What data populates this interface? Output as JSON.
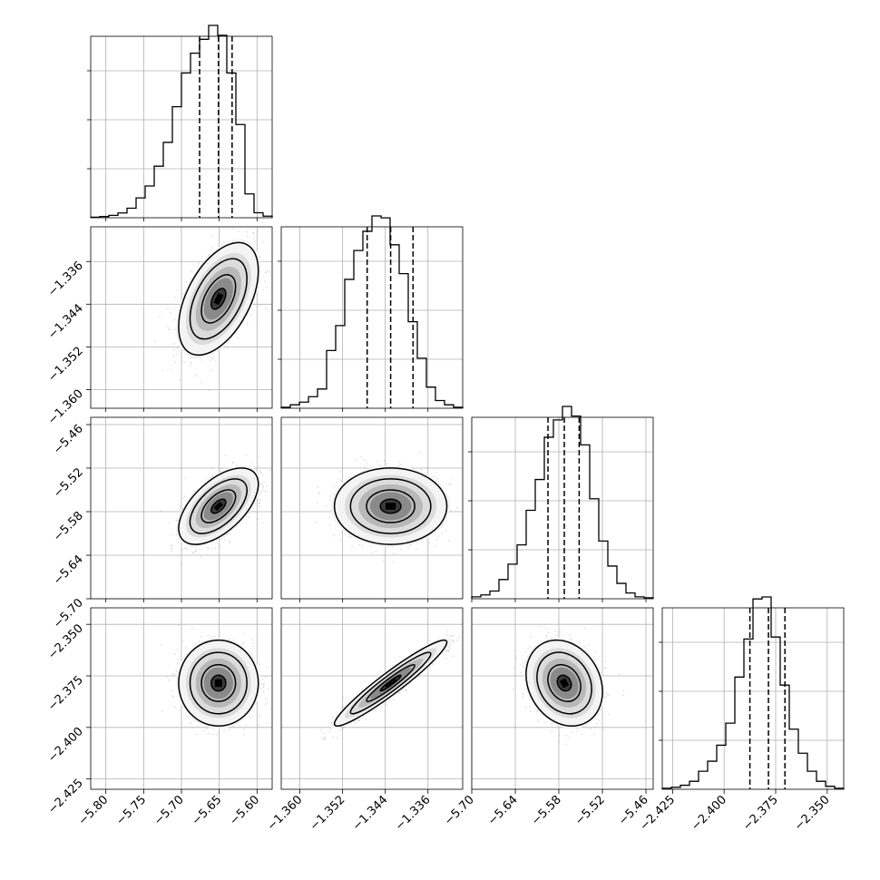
{
  "chart_data": {
    "type": "corner",
    "grid": true,
    "parameters": [
      {
        "range": [
          -5.82,
          -5.58
        ],
        "ticks": [
          -5.8,
          -5.75,
          -5.7,
          -5.65,
          -5.6
        ],
        "tick_labels": [
          "−5.80",
          "−5.75",
          "−5.70",
          "−5.65",
          "−5.60"
        ],
        "quantiles": [
          -5.676,
          -5.651,
          -5.633
        ],
        "hist": [
          0.003,
          0.006,
          0.012,
          0.024,
          0.048,
          0.1,
          0.16,
          0.26,
          0.38,
          0.56,
          0.73,
          0.83,
          0.9,
          0.97,
          0.92,
          0.73,
          0.47,
          0.12,
          0.025,
          0.008
        ]
      },
      {
        "range": [
          -1.3635,
          -1.3295
        ],
        "ticks": [
          -1.36,
          -1.352,
          -1.344,
          -1.336
        ],
        "tick_labels": [
          "−1.360",
          "−1.352",
          "−1.344",
          "−1.336"
        ],
        "quantiles": [
          -1.3474,
          -1.343,
          -1.3388
        ],
        "hist": [
          0.005,
          0.018,
          0.032,
          0.06,
          0.1,
          0.3,
          0.43,
          0.67,
          0.82,
          0.92,
          1.0,
          0.99,
          0.85,
          0.7,
          0.45,
          0.26,
          0.11,
          0.04,
          0.018,
          0.005
        ]
      },
      {
        "range": [
          -5.7,
          -5.45
        ],
        "ticks": [
          -5.7,
          -5.64,
          -5.58,
          -5.52,
          -5.46
        ],
        "tick_labels": [
          "−5.70",
          "−5.64",
          "−5.58",
          "−5.52",
          "−5.46"
        ],
        "quantiles": [
          -5.595,
          -5.5725,
          -5.552
        ],
        "hist": [
          0.01,
          0.02,
          0.04,
          0.1,
          0.18,
          0.28,
          0.46,
          0.62,
          0.84,
          0.93,
          1.0,
          0.95,
          0.8,
          0.52,
          0.3,
          0.17,
          0.08,
          0.03,
          0.01,
          0.005
        ]
      },
      {
        "range": [
          -2.43,
          -2.342
        ],
        "ticks": [
          -2.425,
          -2.4,
          -2.375,
          -2.35
        ],
        "tick_labels": [
          "−2.425",
          "−2.400",
          "−2.375",
          "−2.350"
        ],
        "quantiles": [
          -2.3875,
          -2.3785,
          -2.3705
        ],
        "hist": [
          0.005,
          0.01,
          0.02,
          0.04,
          0.09,
          0.14,
          0.22,
          0.33,
          0.56,
          0.75,
          0.95,
          0.96,
          0.76,
          0.52,
          0.3,
          0.18,
          0.09,
          0.04,
          0.015,
          0.005
        ]
      }
    ],
    "pairs": [
      {
        "row": 1,
        "col": 0,
        "corr": 0.5
      },
      {
        "row": 2,
        "col": 0,
        "corr": 0.58
      },
      {
        "row": 2,
        "col": 1,
        "corr": 0.0
      },
      {
        "row": 3,
        "col": 0,
        "corr": 0.0
      },
      {
        "row": 3,
        "col": 1,
        "corr": 0.95
      },
      {
        "row": 3,
        "col": 2,
        "corr": -0.2
      }
    ]
  }
}
